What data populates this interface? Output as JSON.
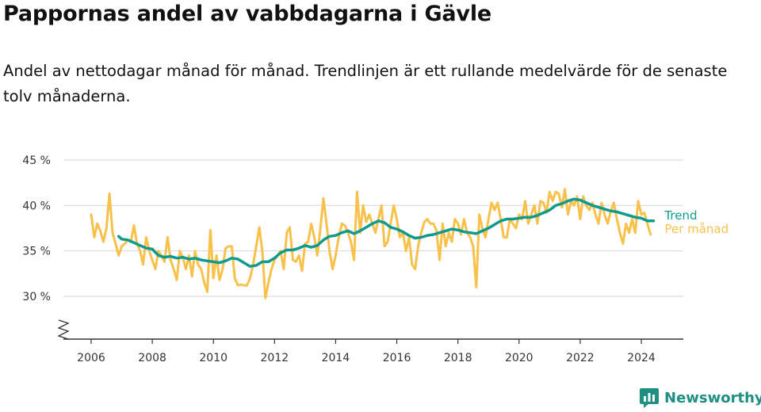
{
  "title": "Pappornas andel av vabbdagarna i Gävle",
  "subtitle": "Andel av nettodagar månad för månad. Trendlinjen är ett rullande medelvärde för de senaste tolv månaderna.",
  "brand": "Newsworthy",
  "colors": {
    "trend": "#0f9a8e",
    "monthly": "#f7c14b",
    "grid": "#d9d9d9",
    "axis": "#333333"
  },
  "chart_data": {
    "type": "line",
    "ylim": [
      25,
      45
    ],
    "xlim": [
      2005.5,
      2025.2
    ],
    "y_ticks": [
      {
        "value": 30,
        "label": "30 %"
      },
      {
        "value": 35,
        "label": "35 %"
      },
      {
        "value": 40,
        "label": "40 %"
      },
      {
        "value": 45,
        "label": "45 %"
      }
    ],
    "x_ticks": [
      {
        "value": 2006,
        "label": "2006"
      },
      {
        "value": 2008,
        "label": "2008"
      },
      {
        "value": 2010,
        "label": "2010"
      },
      {
        "value": 2012,
        "label": "2012"
      },
      {
        "value": 2014,
        "label": "2014"
      },
      {
        "value": 2016,
        "label": "2016"
      },
      {
        "value": 2018,
        "label": "2018"
      },
      {
        "value": 2020,
        "label": "2020"
      },
      {
        "value": 2022,
        "label": "2022"
      },
      {
        "value": 2024,
        "label": "2024"
      }
    ],
    "axis_break": true,
    "grid": true,
    "series": [
      {
        "name": "Per månad",
        "color": "#f7c14b",
        "points": [
          [
            2006.0,
            39.0
          ],
          [
            2006.1,
            36.5
          ],
          [
            2006.2,
            38.0
          ],
          [
            2006.3,
            37.2
          ],
          [
            2006.4,
            36.0
          ],
          [
            2006.5,
            37.5
          ],
          [
            2006.6,
            41.3
          ],
          [
            2006.7,
            37.0
          ],
          [
            2006.8,
            35.8
          ],
          [
            2006.9,
            34.5
          ],
          [
            2007.0,
            35.5
          ],
          [
            2007.1,
            35.8
          ],
          [
            2007.2,
            36.2
          ],
          [
            2007.3,
            36.0
          ],
          [
            2007.4,
            37.8
          ],
          [
            2007.5,
            35.8
          ],
          [
            2007.6,
            35.0
          ],
          [
            2007.7,
            33.5
          ],
          [
            2007.8,
            36.5
          ],
          [
            2007.9,
            35.0
          ],
          [
            2008.0,
            34.0
          ],
          [
            2008.1,
            33.0
          ],
          [
            2008.2,
            35.0
          ],
          [
            2008.3,
            34.5
          ],
          [
            2008.4,
            33.8
          ],
          [
            2008.5,
            36.5
          ],
          [
            2008.6,
            34.0
          ],
          [
            2008.7,
            33.0
          ],
          [
            2008.8,
            31.8
          ],
          [
            2008.9,
            35.0
          ],
          [
            2009.0,
            34.3
          ],
          [
            2009.1,
            33.0
          ],
          [
            2009.2,
            34.5
          ],
          [
            2009.3,
            32.2
          ],
          [
            2009.4,
            35.0
          ],
          [
            2009.5,
            33.5
          ],
          [
            2009.6,
            33.0
          ],
          [
            2009.7,
            31.5
          ],
          [
            2009.8,
            30.5
          ],
          [
            2009.9,
            37.3
          ],
          [
            2010.0,
            32.0
          ],
          [
            2010.1,
            34.5
          ],
          [
            2010.2,
            31.8
          ],
          [
            2010.3,
            33.0
          ],
          [
            2010.4,
            35.3
          ],
          [
            2010.5,
            35.5
          ],
          [
            2010.6,
            35.5
          ],
          [
            2010.7,
            32.0
          ],
          [
            2010.8,
            31.2
          ],
          [
            2010.9,
            31.3
          ],
          [
            2011.0,
            31.2
          ],
          [
            2011.1,
            31.2
          ],
          [
            2011.2,
            32.0
          ],
          [
            2011.3,
            33.5
          ],
          [
            2011.4,
            35.5
          ],
          [
            2011.5,
            37.6
          ],
          [
            2011.6,
            35.0
          ],
          [
            2011.7,
            29.8
          ],
          [
            2011.8,
            31.5
          ],
          [
            2011.9,
            33.0
          ],
          [
            2012.0,
            34.0
          ],
          [
            2012.1,
            34.5
          ],
          [
            2012.2,
            35.0
          ],
          [
            2012.3,
            33.0
          ],
          [
            2012.4,
            37.0
          ],
          [
            2012.5,
            37.6
          ],
          [
            2012.6,
            34.0
          ],
          [
            2012.7,
            33.8
          ],
          [
            2012.8,
            34.5
          ],
          [
            2012.9,
            32.8
          ],
          [
            2013.0,
            35.8
          ],
          [
            2013.1,
            36.0
          ],
          [
            2013.2,
            38.0
          ],
          [
            2013.3,
            36.5
          ],
          [
            2013.4,
            34.5
          ],
          [
            2013.5,
            37.5
          ],
          [
            2013.6,
            40.8
          ],
          [
            2013.7,
            38.0
          ],
          [
            2013.8,
            35.0
          ],
          [
            2013.9,
            33.0
          ],
          [
            2014.0,
            34.5
          ],
          [
            2014.1,
            36.5
          ],
          [
            2014.2,
            38.0
          ],
          [
            2014.3,
            37.8
          ],
          [
            2014.4,
            37.0
          ],
          [
            2014.5,
            36.0
          ],
          [
            2014.6,
            34.0
          ],
          [
            2014.7,
            41.5
          ],
          [
            2014.8,
            37.0
          ],
          [
            2014.9,
            40.0
          ],
          [
            2015.0,
            38.2
          ],
          [
            2015.1,
            39.0
          ],
          [
            2015.2,
            38.0
          ],
          [
            2015.3,
            37.0
          ],
          [
            2015.4,
            38.5
          ],
          [
            2015.5,
            40.0
          ],
          [
            2015.6,
            35.5
          ],
          [
            2015.7,
            36.0
          ],
          [
            2015.8,
            38.0
          ],
          [
            2015.9,
            40.0
          ],
          [
            2016.0,
            38.5
          ],
          [
            2016.1,
            36.5
          ],
          [
            2016.2,
            37.0
          ],
          [
            2016.3,
            35.0
          ],
          [
            2016.4,
            36.5
          ],
          [
            2016.5,
            33.5
          ],
          [
            2016.6,
            33.0
          ],
          [
            2016.7,
            35.5
          ],
          [
            2016.8,
            37.0
          ],
          [
            2016.9,
            38.2
          ],
          [
            2017.0,
            38.5
          ],
          [
            2017.1,
            38.0
          ],
          [
            2017.2,
            38.0
          ],
          [
            2017.3,
            37.2
          ],
          [
            2017.4,
            34.0
          ],
          [
            2017.5,
            38.0
          ],
          [
            2017.6,
            35.5
          ],
          [
            2017.7,
            37.0
          ],
          [
            2017.8,
            36.0
          ],
          [
            2017.9,
            38.5
          ],
          [
            2018.0,
            38.0
          ],
          [
            2018.1,
            36.8
          ],
          [
            2018.2,
            38.5
          ],
          [
            2018.3,
            37.0
          ],
          [
            2018.4,
            36.5
          ],
          [
            2018.5,
            35.5
          ],
          [
            2018.6,
            31.0
          ],
          [
            2018.7,
            39.0
          ],
          [
            2018.8,
            37.5
          ],
          [
            2018.9,
            36.5
          ],
          [
            2019.0,
            38.5
          ],
          [
            2019.1,
            40.3
          ],
          [
            2019.2,
            39.5
          ],
          [
            2019.3,
            40.3
          ],
          [
            2019.4,
            38.5
          ],
          [
            2019.5,
            36.5
          ],
          [
            2019.6,
            36.5
          ],
          [
            2019.7,
            38.5
          ],
          [
            2019.8,
            38.0
          ],
          [
            2019.9,
            37.5
          ],
          [
            2020.0,
            39.0
          ],
          [
            2020.1,
            38.5
          ],
          [
            2020.2,
            40.5
          ],
          [
            2020.3,
            38.0
          ],
          [
            2020.4,
            39.0
          ],
          [
            2020.5,
            40.0
          ],
          [
            2020.6,
            38.0
          ],
          [
            2020.7,
            40.5
          ],
          [
            2020.8,
            40.3
          ],
          [
            2020.9,
            39.2
          ],
          [
            2021.0,
            41.5
          ],
          [
            2021.1,
            40.5
          ],
          [
            2021.2,
            41.5
          ],
          [
            2021.3,
            41.3
          ],
          [
            2021.4,
            39.8
          ],
          [
            2021.5,
            41.8
          ],
          [
            2021.6,
            39.0
          ],
          [
            2021.7,
            40.5
          ],
          [
            2021.8,
            40.0
          ],
          [
            2021.9,
            41.0
          ],
          [
            2022.0,
            38.5
          ],
          [
            2022.1,
            41.0
          ],
          [
            2022.2,
            40.0
          ],
          [
            2022.3,
            39.5
          ],
          [
            2022.4,
            40.3
          ],
          [
            2022.5,
            39.0
          ],
          [
            2022.6,
            38.0
          ],
          [
            2022.7,
            40.3
          ],
          [
            2022.8,
            39.0
          ],
          [
            2022.9,
            38.0
          ],
          [
            2023.0,
            39.3
          ],
          [
            2023.1,
            40.3
          ],
          [
            2023.2,
            38.5
          ],
          [
            2023.3,
            37.0
          ],
          [
            2023.4,
            35.8
          ],
          [
            2023.5,
            38.0
          ],
          [
            2023.6,
            37.0
          ],
          [
            2023.7,
            38.5
          ],
          [
            2023.8,
            37.0
          ],
          [
            2023.9,
            40.5
          ],
          [
            2024.0,
            39.0
          ],
          [
            2024.1,
            39.2
          ],
          [
            2024.2,
            38.0
          ],
          [
            2024.3,
            36.8
          ]
        ]
      },
      {
        "name": "Trend",
        "color": "#0f9a8e",
        "points": [
          [
            2006.9,
            36.6
          ],
          [
            2007.0,
            36.3
          ],
          [
            2007.2,
            36.2
          ],
          [
            2007.4,
            35.9
          ],
          [
            2007.6,
            35.6
          ],
          [
            2007.8,
            35.3
          ],
          [
            2008.0,
            35.2
          ],
          [
            2008.2,
            34.5
          ],
          [
            2008.4,
            34.3
          ],
          [
            2008.6,
            34.4
          ],
          [
            2008.8,
            34.2
          ],
          [
            2009.0,
            34.3
          ],
          [
            2009.2,
            34.1
          ],
          [
            2009.4,
            34.2
          ],
          [
            2009.6,
            34.0
          ],
          [
            2009.8,
            33.9
          ],
          [
            2010.0,
            33.8
          ],
          [
            2010.2,
            33.7
          ],
          [
            2010.4,
            33.9
          ],
          [
            2010.6,
            34.2
          ],
          [
            2010.8,
            34.1
          ],
          [
            2011.0,
            33.7
          ],
          [
            2011.2,
            33.3
          ],
          [
            2011.4,
            33.4
          ],
          [
            2011.6,
            33.8
          ],
          [
            2011.8,
            33.8
          ],
          [
            2012.0,
            34.2
          ],
          [
            2012.2,
            34.8
          ],
          [
            2012.4,
            35.1
          ],
          [
            2012.6,
            35.1
          ],
          [
            2012.8,
            35.3
          ],
          [
            2013.0,
            35.6
          ],
          [
            2013.2,
            35.4
          ],
          [
            2013.4,
            35.6
          ],
          [
            2013.6,
            36.2
          ],
          [
            2013.8,
            36.6
          ],
          [
            2014.0,
            36.7
          ],
          [
            2014.2,
            37.0
          ],
          [
            2014.4,
            37.2
          ],
          [
            2014.6,
            36.9
          ],
          [
            2014.8,
            37.2
          ],
          [
            2015.0,
            37.6
          ],
          [
            2015.2,
            38.0
          ],
          [
            2015.4,
            38.3
          ],
          [
            2015.6,
            38.1
          ],
          [
            2015.8,
            37.6
          ],
          [
            2016.0,
            37.4
          ],
          [
            2016.2,
            37.1
          ],
          [
            2016.4,
            36.7
          ],
          [
            2016.6,
            36.4
          ],
          [
            2016.8,
            36.5
          ],
          [
            2017.0,
            36.7
          ],
          [
            2017.2,
            36.8
          ],
          [
            2017.4,
            37.0
          ],
          [
            2017.6,
            37.2
          ],
          [
            2017.8,
            37.4
          ],
          [
            2018.0,
            37.3
          ],
          [
            2018.2,
            37.1
          ],
          [
            2018.4,
            37.0
          ],
          [
            2018.6,
            36.9
          ],
          [
            2018.8,
            37.2
          ],
          [
            2019.0,
            37.5
          ],
          [
            2019.2,
            37.9
          ],
          [
            2019.4,
            38.3
          ],
          [
            2019.6,
            38.5
          ],
          [
            2019.8,
            38.5
          ],
          [
            2020.0,
            38.6
          ],
          [
            2020.2,
            38.7
          ],
          [
            2020.4,
            38.7
          ],
          [
            2020.6,
            38.9
          ],
          [
            2020.8,
            39.2
          ],
          [
            2021.0,
            39.5
          ],
          [
            2021.2,
            40.0
          ],
          [
            2021.4,
            40.2
          ],
          [
            2021.6,
            40.5
          ],
          [
            2021.8,
            40.7
          ],
          [
            2022.0,
            40.6
          ],
          [
            2022.2,
            40.3
          ],
          [
            2022.4,
            40.0
          ],
          [
            2022.6,
            39.8
          ],
          [
            2022.8,
            39.6
          ],
          [
            2023.0,
            39.4
          ],
          [
            2023.2,
            39.3
          ],
          [
            2023.4,
            39.1
          ],
          [
            2023.6,
            38.9
          ],
          [
            2023.8,
            38.7
          ],
          [
            2024.0,
            38.6
          ],
          [
            2024.2,
            38.3
          ],
          [
            2024.4,
            38.3
          ]
        ]
      }
    ]
  }
}
